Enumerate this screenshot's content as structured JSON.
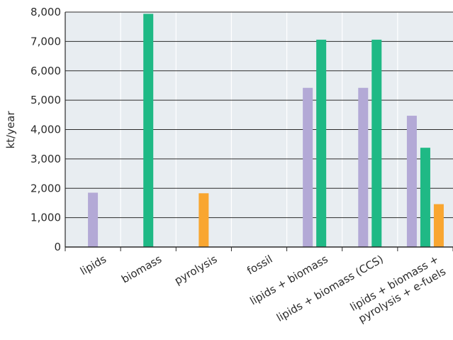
{
  "chart_data": {
    "type": "bar",
    "title": "",
    "xlabel": "",
    "ylabel": "kt/year",
    "ylim": [
      0,
      8000
    ],
    "yticks": [
      0,
      1000,
      2000,
      3000,
      4000,
      5000,
      6000,
      7000,
      8000
    ],
    "ytick_labels": [
      "0",
      "1,000",
      "2,000",
      "3,000",
      "4,000",
      "5,000",
      "6,000",
      "7,000",
      "8,000"
    ],
    "grid": true,
    "categories": [
      [
        "lipids"
      ],
      [
        "biomass"
      ],
      [
        "pyrolysis"
      ],
      [
        "fossil"
      ],
      [
        "lipids + biomass"
      ],
      [
        "lipids + biomass (CCS)"
      ],
      [
        "lipids + biomass +",
        "pyrolysis + e-fuels"
      ]
    ],
    "series": [
      {
        "color": "#b3a9d6",
        "values": [
          1850,
          null,
          null,
          null,
          5420,
          5420,
          4470
        ]
      },
      {
        "color": "#1fb985",
        "values": [
          null,
          7940,
          null,
          null,
          7060,
          7060,
          3380
        ]
      },
      {
        "color": "#f9a630",
        "values": [
          null,
          null,
          1830,
          null,
          null,
          null,
          1460
        ]
      }
    ],
    "plot_background": "#e8edf1",
    "gridline_color": "#2b2b2b",
    "category_divider_color": "#ffffff"
  }
}
